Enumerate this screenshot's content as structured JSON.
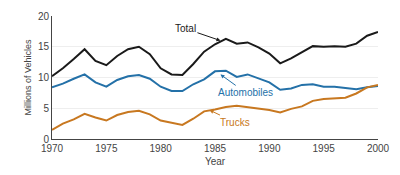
{
  "chart_data": {
    "type": "line",
    "xlabel": "Year",
    "ylabel": "Millions of Vehicles",
    "x": [
      1970,
      1971,
      1972,
      1973,
      1974,
      1975,
      1976,
      1977,
      1978,
      1979,
      1980,
      1981,
      1982,
      1983,
      1984,
      1985,
      1986,
      1987,
      1988,
      1989,
      1990,
      1991,
      1992,
      1993,
      1994,
      1995,
      1996,
      1997,
      1998,
      1999,
      2000
    ],
    "series": [
      {
        "name": "Total",
        "color": "#1a1a1a",
        "values": [
          10.2,
          11.5,
          13.0,
          14.6,
          12.7,
          12.0,
          13.5,
          14.6,
          15.0,
          13.8,
          11.5,
          10.5,
          10.4,
          12.2,
          14.2,
          15.4,
          16.3,
          15.5,
          15.7,
          14.9,
          13.9,
          12.3,
          13.1,
          14.1,
          15.1,
          15.0,
          15.1,
          15.0,
          15.5,
          16.8,
          17.4
        ]
      },
      {
        "name": "Automobiles",
        "color": "#2471a8",
        "values": [
          8.4,
          9.0,
          9.8,
          10.5,
          9.2,
          8.5,
          9.6,
          10.2,
          10.4,
          9.8,
          8.5,
          7.8,
          7.8,
          8.9,
          9.7,
          11.0,
          11.1,
          10.1,
          10.5,
          9.9,
          9.2,
          8.0,
          8.2,
          8.8,
          8.9,
          8.5,
          8.5,
          8.3,
          8.1,
          8.4,
          8.6
        ]
      },
      {
        "name": "Trucks",
        "color": "#c87820",
        "values": [
          1.5,
          2.5,
          3.2,
          4.1,
          3.5,
          3.0,
          3.9,
          4.4,
          4.6,
          4.0,
          3.0,
          2.7,
          2.3,
          3.3,
          4.5,
          4.8,
          5.2,
          5.4,
          5.2,
          5.0,
          4.7,
          4.3,
          4.9,
          5.3,
          6.2,
          6.5,
          6.6,
          6.7,
          7.4,
          8.4,
          8.8
        ]
      }
    ],
    "xlim": [
      1970,
      2000
    ],
    "ylim": [
      0,
      20
    ],
    "xticks": [
      1970,
      1975,
      1980,
      1985,
      1990,
      1995,
      2000
    ],
    "yticks": [
      0,
      5,
      10,
      15,
      20
    ],
    "grid": true,
    "annotations": [
      {
        "text": "Total",
        "x": 1985.5,
        "y": 16.0
      },
      {
        "text": "Automobiles",
        "x": 1985.5,
        "y": 10.5
      },
      {
        "text": "Trucks",
        "x": 1984.5,
        "y": 4.7
      }
    ]
  }
}
